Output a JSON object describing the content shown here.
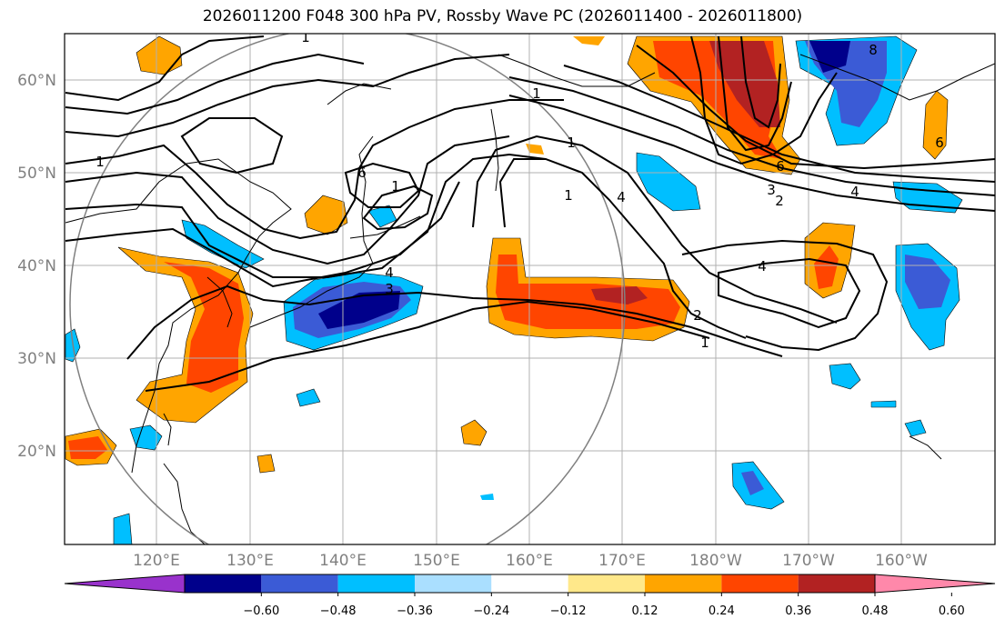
{
  "title": "2026011200 F048 300 hPa PV, Rossby Wave PC (2026011400 - 2026011800)",
  "map": {
    "lon_labels": [
      "120°E",
      "130°E",
      "140°E",
      "150°E",
      "160°E",
      "170°E",
      "180°W",
      "170°W",
      "160°W"
    ],
    "lat_labels": [
      "60°N",
      "50°N",
      "40°N",
      "30°N",
      "20°N"
    ],
    "contour_labels": [
      "1",
      "1",
      "1",
      "1",
      "1",
      "1",
      "1",
      "2",
      "2",
      "3",
      "3",
      "4",
      "4",
      "4",
      "4",
      "6",
      "6",
      "6",
      "8"
    ]
  },
  "colorbar": {
    "ticks": [
      "−0.60",
      "−0.48",
      "−0.36",
      "−0.24",
      "−0.12",
      "0.12",
      "0.24",
      "0.36",
      "0.48",
      "0.60"
    ],
    "colors": [
      "#9932cc",
      "#00008b",
      "#3b5bd6",
      "#00bfff",
      "#aadfff",
      "#ffffff",
      "#ffe88a",
      "#ffa500",
      "#ff4500",
      "#b22222",
      "#ff88aa"
    ]
  },
  "colors": {
    "contour": "#000000",
    "grid": "#b0b0b0",
    "circle": "#808080"
  }
}
